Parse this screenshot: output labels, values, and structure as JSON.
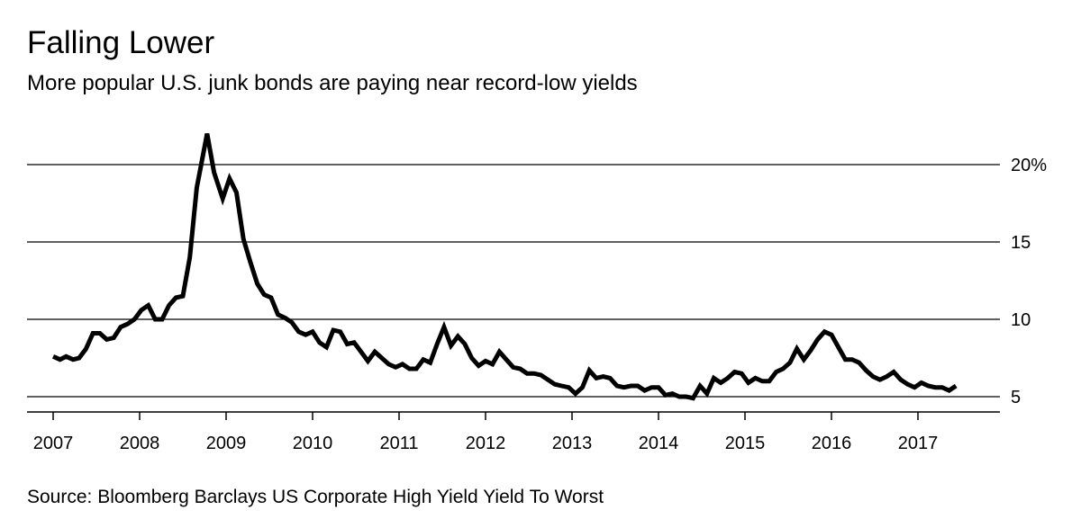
{
  "header": {
    "title": "Falling Lower",
    "subtitle": "More popular U.S. junk bonds are paying near record-low yields"
  },
  "footer": {
    "source": "Source: Bloomberg Barclays US Corporate High Yield Yield To Worst"
  },
  "chart_data": {
    "type": "line",
    "title": "Falling Lower",
    "subtitle": "More popular U.S. junk bonds are paying near record-low yields",
    "xlabel": "",
    "ylabel": "",
    "ylim": [
      4,
      22.5
    ],
    "xlim": [
      2006.7,
      2017.95
    ],
    "y_ticks": [
      {
        "value": 20,
        "label": "20%"
      },
      {
        "value": 15,
        "label": "15"
      },
      {
        "value": 10,
        "label": "10"
      },
      {
        "value": 5,
        "label": "5"
      }
    ],
    "x_ticks": [
      {
        "value": 2007,
        "label": "2007"
      },
      {
        "value": 2008,
        "label": "2008"
      },
      {
        "value": 2009,
        "label": "2009"
      },
      {
        "value": 2010,
        "label": "2010"
      },
      {
        "value": 2011,
        "label": "2011"
      },
      {
        "value": 2012,
        "label": "2012"
      },
      {
        "value": 2013,
        "label": "2013"
      },
      {
        "value": 2014,
        "label": "2014"
      },
      {
        "value": 2015,
        "label": "2015"
      },
      {
        "value": 2016,
        "label": "2016"
      },
      {
        "value": 2017,
        "label": "2017"
      }
    ],
    "grid": true,
    "y_axis_side": "right",
    "series": [
      {
        "name": "Yield To Worst",
        "color": "#000000",
        "points": [
          [
            2007.0,
            7.6
          ],
          [
            2007.08,
            7.4
          ],
          [
            2007.15,
            7.6
          ],
          [
            2007.23,
            7.4
          ],
          [
            2007.3,
            7.5
          ],
          [
            2007.38,
            8.1
          ],
          [
            2007.46,
            9.1
          ],
          [
            2007.54,
            9.1
          ],
          [
            2007.62,
            8.7
          ],
          [
            2007.7,
            8.8
          ],
          [
            2007.78,
            9.5
          ],
          [
            2007.86,
            9.7
          ],
          [
            2007.94,
            10.0
          ],
          [
            2008.02,
            10.6
          ],
          [
            2008.1,
            10.9
          ],
          [
            2008.18,
            10.0
          ],
          [
            2008.26,
            10.0
          ],
          [
            2008.34,
            10.9
          ],
          [
            2008.42,
            11.4
          ],
          [
            2008.5,
            11.5
          ],
          [
            2008.58,
            14.0
          ],
          [
            2008.66,
            18.5
          ],
          [
            2008.78,
            22.0
          ],
          [
            2008.86,
            19.5
          ],
          [
            2008.96,
            17.8
          ],
          [
            2009.04,
            19.1
          ],
          [
            2009.12,
            18.2
          ],
          [
            2009.2,
            15.2
          ],
          [
            2009.28,
            13.7
          ],
          [
            2009.36,
            12.3
          ],
          [
            2009.44,
            11.6
          ],
          [
            2009.52,
            11.4
          ],
          [
            2009.6,
            10.3
          ],
          [
            2009.68,
            10.1
          ],
          [
            2009.76,
            9.8
          ],
          [
            2009.84,
            9.2
          ],
          [
            2009.92,
            9.0
          ],
          [
            2010.0,
            9.2
          ],
          [
            2010.08,
            8.5
          ],
          [
            2010.16,
            8.2
          ],
          [
            2010.24,
            9.3
          ],
          [
            2010.32,
            9.2
          ],
          [
            2010.4,
            8.4
          ],
          [
            2010.48,
            8.5
          ],
          [
            2010.56,
            7.9
          ],
          [
            2010.64,
            7.3
          ],
          [
            2010.72,
            7.9
          ],
          [
            2010.8,
            7.5
          ],
          [
            2010.88,
            7.1
          ],
          [
            2010.96,
            6.9
          ],
          [
            2011.04,
            7.1
          ],
          [
            2011.12,
            6.8
          ],
          [
            2011.2,
            6.8
          ],
          [
            2011.28,
            7.4
          ],
          [
            2011.36,
            7.2
          ],
          [
            2011.44,
            8.4
          ],
          [
            2011.52,
            9.5
          ],
          [
            2011.6,
            8.3
          ],
          [
            2011.68,
            8.9
          ],
          [
            2011.76,
            8.4
          ],
          [
            2011.84,
            7.5
          ],
          [
            2011.92,
            7.0
          ],
          [
            2012.0,
            7.3
          ],
          [
            2012.08,
            7.1
          ],
          [
            2012.16,
            7.9
          ],
          [
            2012.24,
            7.4
          ],
          [
            2012.32,
            6.9
          ],
          [
            2012.4,
            6.8
          ],
          [
            2012.48,
            6.5
          ],
          [
            2012.56,
            6.5
          ],
          [
            2012.64,
            6.4
          ],
          [
            2012.72,
            6.1
          ],
          [
            2012.8,
            5.8
          ],
          [
            2012.88,
            5.7
          ],
          [
            2012.96,
            5.6
          ],
          [
            2013.04,
            5.2
          ],
          [
            2013.12,
            5.6
          ],
          [
            2013.2,
            6.7
          ],
          [
            2013.28,
            6.2
          ],
          [
            2013.36,
            6.3
          ],
          [
            2013.44,
            6.2
          ],
          [
            2013.52,
            5.7
          ],
          [
            2013.6,
            5.6
          ],
          [
            2013.68,
            5.7
          ],
          [
            2013.76,
            5.7
          ],
          [
            2013.84,
            5.4
          ],
          [
            2013.92,
            5.6
          ],
          [
            2014.0,
            5.6
          ],
          [
            2014.08,
            5.1
          ],
          [
            2014.16,
            5.2
          ],
          [
            2014.24,
            5.0
          ],
          [
            2014.32,
            5.0
          ],
          [
            2014.4,
            4.9
          ],
          [
            2014.48,
            5.7
          ],
          [
            2014.56,
            5.2
          ],
          [
            2014.64,
            6.2
          ],
          [
            2014.72,
            5.9
          ],
          [
            2014.8,
            6.2
          ],
          [
            2014.88,
            6.6
          ],
          [
            2014.96,
            6.5
          ],
          [
            2015.04,
            5.9
          ],
          [
            2015.12,
            6.2
          ],
          [
            2015.2,
            6.0
          ],
          [
            2015.28,
            6.0
          ],
          [
            2015.36,
            6.6
          ],
          [
            2015.44,
            6.8
          ],
          [
            2015.52,
            7.2
          ],
          [
            2015.6,
            8.1
          ],
          [
            2015.68,
            7.4
          ],
          [
            2015.76,
            8.0
          ],
          [
            2015.84,
            8.7
          ],
          [
            2015.92,
            9.2
          ],
          [
            2016.0,
            9.0
          ],
          [
            2016.08,
            8.2
          ],
          [
            2016.16,
            7.4
          ],
          [
            2016.24,
            7.4
          ],
          [
            2016.32,
            7.2
          ],
          [
            2016.4,
            6.7
          ],
          [
            2016.48,
            6.3
          ],
          [
            2016.56,
            6.1
          ],
          [
            2016.64,
            6.3
          ],
          [
            2016.72,
            6.6
          ],
          [
            2016.8,
            6.1
          ],
          [
            2016.88,
            5.8
          ],
          [
            2016.96,
            5.6
          ],
          [
            2017.04,
            5.9
          ],
          [
            2017.12,
            5.7
          ],
          [
            2017.2,
            5.6
          ],
          [
            2017.28,
            5.6
          ],
          [
            2017.36,
            5.4
          ],
          [
            2017.44,
            5.7
          ]
        ]
      }
    ]
  }
}
